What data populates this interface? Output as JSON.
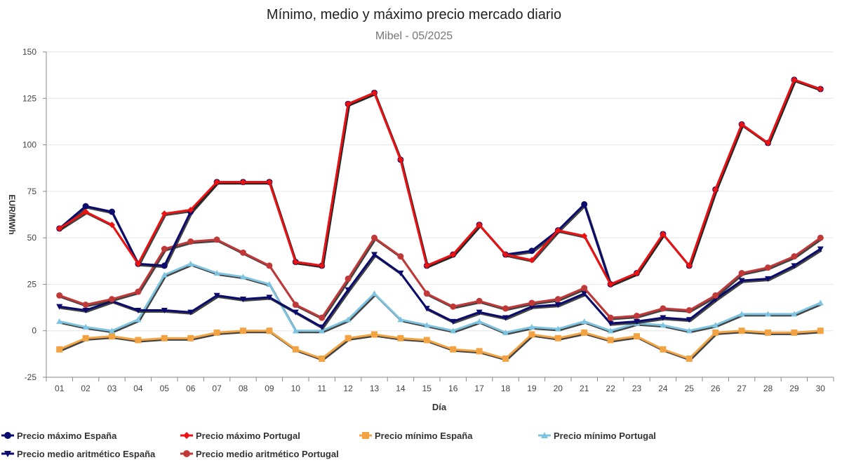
{
  "chart_data": {
    "type": "line",
    "title": "Mínimo, medio y máximo precio mercado diario",
    "subtitle": "Mibel - 05/2025",
    "xlabel": "Día",
    "ylabel": "EUR/MWh",
    "ylim": [
      -25,
      150
    ],
    "yticks": [
      "150",
      "125",
      "100",
      "75",
      "50",
      "25",
      "0",
      "-25"
    ],
    "ytick_values": [
      150,
      125,
      100,
      75,
      50,
      25,
      0,
      -25
    ],
    "grid": true,
    "legend_position": "bottom",
    "categories": [
      "01",
      "02",
      "03",
      "04",
      "05",
      "06",
      "07",
      "08",
      "09",
      "10",
      "11",
      "12",
      "13",
      "14",
      "15",
      "16",
      "17",
      "18",
      "19",
      "20",
      "21",
      "22",
      "23",
      "24",
      "25",
      "26",
      "27",
      "28",
      "29",
      "30"
    ],
    "series": [
      {
        "name": "Precio máximo España",
        "color": "#0b0b6e",
        "marker": "circle",
        "values": [
          55,
          67,
          64,
          36,
          35,
          64,
          80,
          80,
          80,
          37,
          35,
          122,
          128,
          92,
          35,
          41,
          57,
          41,
          43,
          54,
          68,
          25,
          31,
          52,
          35,
          76,
          111,
          101,
          135,
          130
        ]
      },
      {
        "name": "Precio máximo Portugal",
        "color": "#ee1111",
        "marker": "diamond",
        "values": [
          55,
          64,
          57,
          36,
          63,
          65,
          80,
          80,
          80,
          37,
          35,
          122,
          128,
          92,
          35,
          41,
          57,
          41,
          38,
          54,
          51,
          25,
          31,
          52,
          35,
          76,
          111,
          101,
          135,
          130
        ]
      },
      {
        "name": "Precio mínimo España",
        "color": "#f2a444",
        "marker": "square",
        "values": [
          -10,
          -4,
          -3,
          -5,
          -4,
          -4,
          -1,
          0,
          0,
          -10,
          -15,
          -4,
          -2,
          -4,
          -5,
          -10,
          -11,
          -15,
          -2,
          -4,
          -1,
          -5,
          -3,
          -10,
          -15,
          -1,
          0,
          -1,
          -1,
          0
        ]
      },
      {
        "name": "Precio mínimo Portugal",
        "color": "#7ec4e0",
        "marker": "triangle-up",
        "values": [
          5,
          2,
          0,
          6,
          30,
          36,
          31,
          29,
          25,
          0,
          0,
          6,
          20,
          6,
          3,
          0,
          5,
          -1,
          2,
          1,
          5,
          0,
          4,
          3,
          0,
          3,
          9,
          9,
          9,
          15
        ]
      },
      {
        "name": "Precio medio aritmético España",
        "color": "#0b0b6e",
        "marker": "triangle-down",
        "values": [
          13,
          11,
          16,
          11,
          11,
          10,
          19,
          17,
          18,
          10,
          2,
          22,
          41,
          31,
          12,
          5,
          10,
          7,
          13,
          14,
          20,
          4,
          5,
          7,
          6,
          17,
          27,
          28,
          35,
          44
        ]
      },
      {
        "name": "Precio medio aritmético Portugal",
        "color": "#c13838",
        "marker": "circle",
        "values": [
          19,
          14,
          17,
          21,
          44,
          48,
          49,
          42,
          35,
          14,
          7,
          28,
          50,
          40,
          20,
          13,
          16,
          12,
          15,
          17,
          23,
          7,
          8,
          12,
          11,
          19,
          31,
          34,
          40,
          50
        ]
      }
    ]
  }
}
